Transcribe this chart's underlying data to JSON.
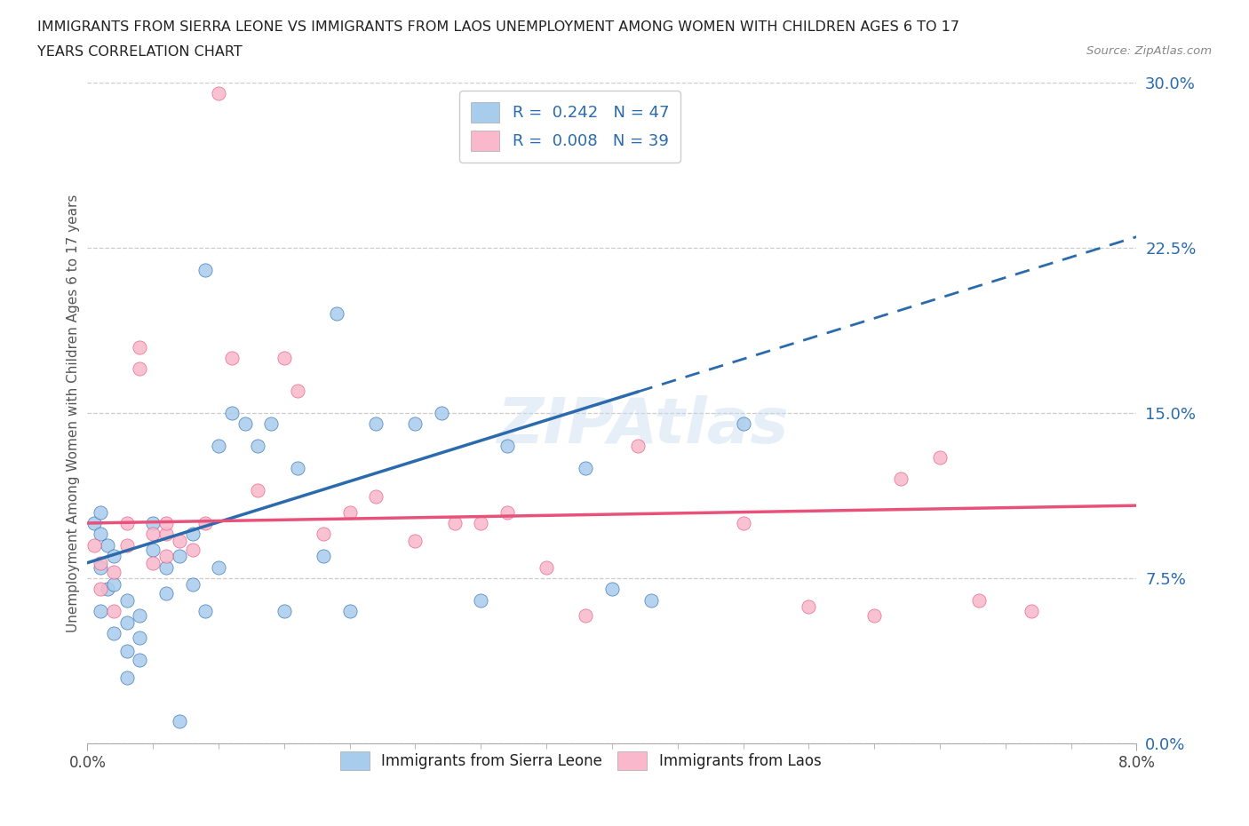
{
  "title_line1": "IMMIGRANTS FROM SIERRA LEONE VS IMMIGRANTS FROM LAOS UNEMPLOYMENT AMONG WOMEN WITH CHILDREN AGES 6 TO 17",
  "title_line2": "YEARS CORRELATION CHART",
  "source_text": "Source: ZipAtlas.com",
  "ylabel": "Unemployment Among Women with Children Ages 6 to 17 years",
  "xlim": [
    0.0,
    0.08
  ],
  "ylim": [
    0.0,
    0.3
  ],
  "xtick_left_label": "0.0%",
  "xtick_right_label": "8.0%",
  "yticks_right": [
    0.0,
    0.075,
    0.15,
    0.225,
    0.3
  ],
  "ytick_labels_right": [
    "0.0%",
    "7.5%",
    "15.0%",
    "22.5%",
    "30.0%"
  ],
  "R_sierra": 0.242,
  "N_sierra": 47,
  "R_laos": 0.008,
  "N_laos": 39,
  "color_sierra": "#a8ccec",
  "color_laos": "#f9b8cb",
  "color_line_sierra": "#2a6aad",
  "color_line_laos": "#e8527a",
  "watermark": "ZIPAtlas",
  "sierra_leone_x": [
    0.0005,
    0.001,
    0.001,
    0.001,
    0.001,
    0.0015,
    0.0015,
    0.002,
    0.002,
    0.002,
    0.003,
    0.003,
    0.003,
    0.003,
    0.004,
    0.004,
    0.004,
    0.005,
    0.005,
    0.006,
    0.006,
    0.007,
    0.007,
    0.008,
    0.008,
    0.009,
    0.009,
    0.01,
    0.01,
    0.011,
    0.012,
    0.013,
    0.014,
    0.015,
    0.016,
    0.018,
    0.019,
    0.02,
    0.022,
    0.025,
    0.027,
    0.03,
    0.032,
    0.038,
    0.04,
    0.043,
    0.05
  ],
  "sierra_leone_y": [
    0.1,
    0.105,
    0.095,
    0.08,
    0.06,
    0.09,
    0.07,
    0.085,
    0.072,
    0.05,
    0.065,
    0.055,
    0.042,
    0.03,
    0.058,
    0.048,
    0.038,
    0.1,
    0.088,
    0.08,
    0.068,
    0.085,
    0.01,
    0.095,
    0.072,
    0.215,
    0.06,
    0.08,
    0.135,
    0.15,
    0.145,
    0.135,
    0.145,
    0.06,
    0.125,
    0.085,
    0.195,
    0.06,
    0.145,
    0.145,
    0.15,
    0.065,
    0.135,
    0.125,
    0.07,
    0.065,
    0.145
  ],
  "laos_x": [
    0.0005,
    0.001,
    0.001,
    0.002,
    0.002,
    0.003,
    0.003,
    0.004,
    0.004,
    0.005,
    0.005,
    0.006,
    0.006,
    0.006,
    0.007,
    0.008,
    0.009,
    0.01,
    0.011,
    0.013,
    0.015,
    0.016,
    0.018,
    0.02,
    0.022,
    0.025,
    0.028,
    0.03,
    0.032,
    0.035,
    0.038,
    0.042,
    0.05,
    0.055,
    0.06,
    0.062,
    0.065,
    0.068,
    0.072
  ],
  "laos_y": [
    0.09,
    0.082,
    0.07,
    0.078,
    0.06,
    0.1,
    0.09,
    0.18,
    0.17,
    0.095,
    0.082,
    0.095,
    0.085,
    0.1,
    0.092,
    0.088,
    0.1,
    0.295,
    0.175,
    0.115,
    0.175,
    0.16,
    0.095,
    0.105,
    0.112,
    0.092,
    0.1,
    0.1,
    0.105,
    0.08,
    0.058,
    0.135,
    0.1,
    0.062,
    0.058,
    0.12,
    0.13,
    0.065,
    0.06
  ],
  "trend_sierra_x0": 0.0,
  "trend_sierra_y0": 0.082,
  "trend_sierra_x1": 0.08,
  "trend_sierra_y1": 0.23,
  "trend_sierra_solid_end": 0.042,
  "trend_laos_x0": 0.0,
  "trend_laos_y0": 0.1,
  "trend_laos_x1": 0.08,
  "trend_laos_y1": 0.108,
  "legend_label_sierra": "Immigrants from Sierra Leone",
  "legend_label_laos": "Immigrants from Laos"
}
